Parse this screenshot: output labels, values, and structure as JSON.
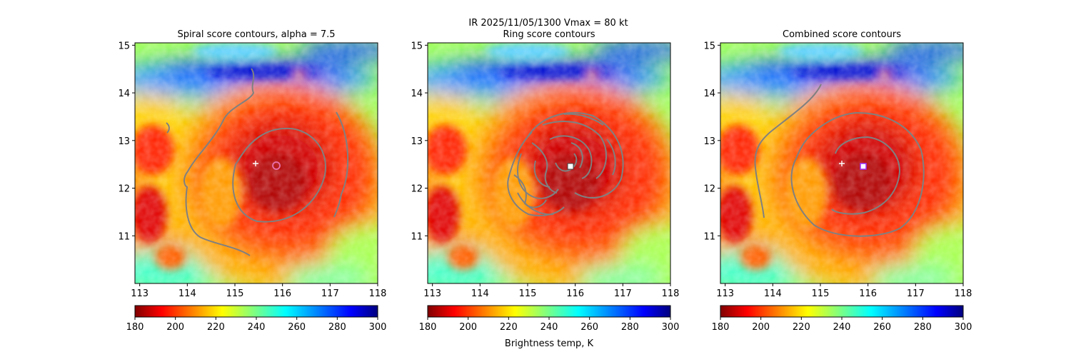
{
  "suptitle": "IR  2025/11/05/1300    Vmax = 80 kt",
  "colorbar_label": "Brightness temp, K",
  "chart_data": [
    {
      "type": "heatmap",
      "title": "Spiral score contours, alpha =  7.5",
      "xlim": [
        112.9,
        118.0
      ],
      "ylim": [
        10.0,
        15.05
      ],
      "xticks": [
        "113",
        "114",
        "115",
        "116",
        "117",
        "118"
      ],
      "yticks": [
        "11",
        "12",
        "13",
        "14",
        "15"
      ],
      "first_guess": {
        "lon": 115.42,
        "lat": 12.56
      },
      "center_marker": {
        "lon": 115.88,
        "lat": 12.5,
        "style": "ring"
      },
      "colorbar": {
        "min": 180,
        "max": 300,
        "ticks": [
          "180",
          "200",
          "220",
          "240",
          "260",
          "280",
          "300"
        ]
      }
    },
    {
      "type": "heatmap",
      "title": "Ring score contours",
      "xlim": [
        112.9,
        118.0
      ],
      "ylim": [
        10.0,
        15.05
      ],
      "xticks": [
        "113",
        "114",
        "115",
        "116",
        "117",
        "118"
      ],
      "yticks": [
        "11",
        "12",
        "13",
        "14",
        "15"
      ],
      "center_marker": {
        "lon": 115.88,
        "lat": 12.5,
        "style": "square"
      },
      "colorbar": {
        "min": 180,
        "max": 300,
        "ticks": [
          "180",
          "200",
          "220",
          "240",
          "260",
          "280",
          "300"
        ]
      }
    },
    {
      "type": "heatmap",
      "title": "Combined score contours",
      "xlim": [
        112.9,
        118.0
      ],
      "ylim": [
        10.0,
        15.05
      ],
      "xticks": [
        "113",
        "114",
        "115",
        "116",
        "117",
        "118"
      ],
      "yticks": [
        "11",
        "12",
        "13",
        "14",
        "15"
      ],
      "first_guess": {
        "lon": 115.42,
        "lat": 12.56
      },
      "center_marker": {
        "lon": 115.88,
        "lat": 12.5,
        "style": "square-purple"
      },
      "colorbar": {
        "min": 180,
        "max": 300,
        "ticks": [
          "180",
          "200",
          "220",
          "240",
          "260",
          "280",
          "300"
        ]
      }
    }
  ]
}
